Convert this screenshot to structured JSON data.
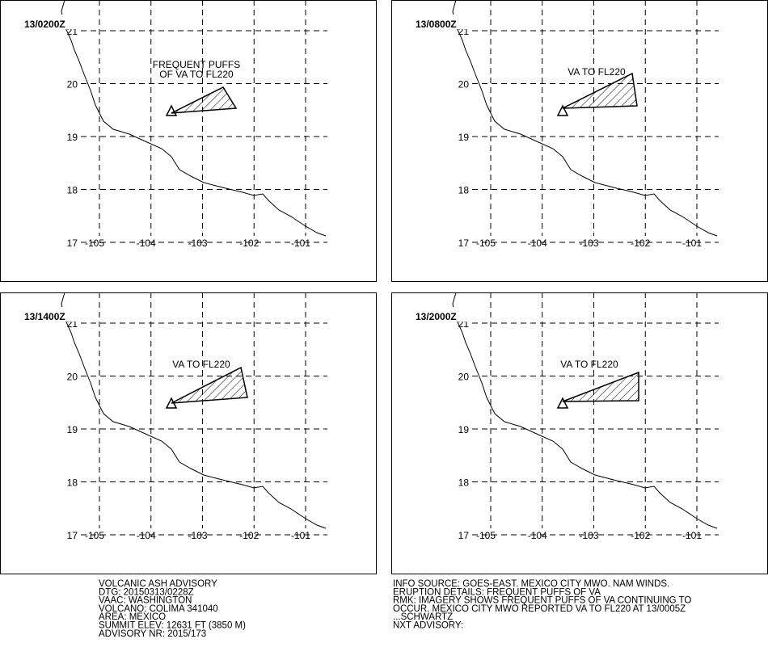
{
  "panels": [
    {
      "time": "13/0200Z",
      "annotation": [
        "FREQUENT PUFFS",
        "OF VA TO FL220"
      ]
    },
    {
      "time": "13/0800Z",
      "annotation": [
        "VA TO FL220"
      ]
    },
    {
      "time": "13/1400Z",
      "annotation": [
        "VA TO FL220"
      ]
    },
    {
      "time": "13/2000Z",
      "annotation": [
        "VA TO FL220"
      ]
    }
  ],
  "lat_labels": [
    21,
    20,
    19,
    18,
    17
  ],
  "lon_labels": [
    -105,
    -104,
    -103,
    -102,
    -101
  ],
  "advisory_left": [
    "VOLCANIC ASH ADVISORY",
    "DTG: 20150313/0228Z",
    "VAAC: WASHINGTON",
    "VOLCANO: COLIMA 341040",
    "AREA: MEXICO",
    "SUMMIT ELEV: 12631 FT (3850 M)",
    "ADVISORY NR: 2015/173"
  ],
  "advisory_right": [
    "INFO SOURCE: GOES-EAST. MEXICO CITY MWO. NAM WINDS.",
    "ERUPTION DETAILS: FREQUENT PUFFS OF VA",
    "RMK: IMAGERY SHOWS FREQUENT PUFFS OF VA CONTINUING TO",
    "OCCUR. MEXICO CITY MWO REPORTED VA TO FL220 AT 13/0005Z",
    "...SCHWARTZ",
    "NXT ADVISORY:"
  ]
}
